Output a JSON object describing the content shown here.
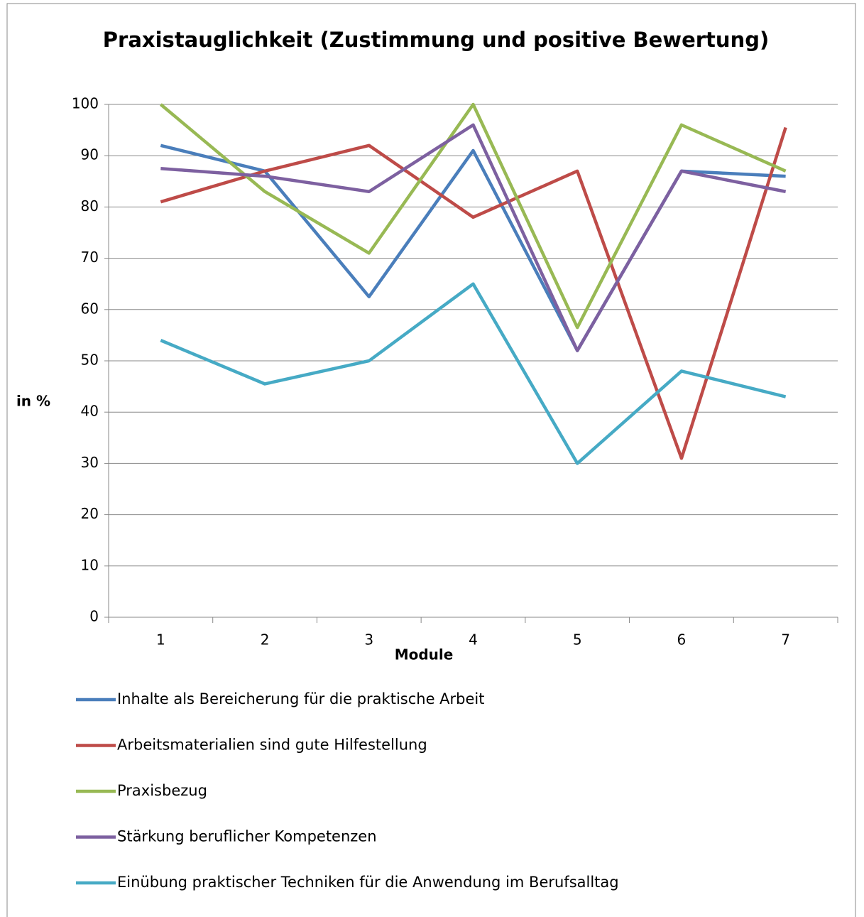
{
  "chart_data": {
    "type": "line",
    "title": "Praxistauglichkeit (Zustimmung und positive Bewertung)",
    "x_label": "Module",
    "y_label": "in %",
    "categories": [
      "1",
      "2",
      "3",
      "4",
      "5",
      "6",
      "7"
    ],
    "series": [
      {
        "name": "Inhalte als Bereicherung für die praktische Arbeit",
        "color": "#4a7ebb",
        "values": [
          92,
          87,
          62.5,
          91,
          52,
          87,
          86
        ]
      },
      {
        "name": "Arbeitsmaterialien sind gute Hilfestellung",
        "color": "#be4b48",
        "values": [
          81,
          87,
          92,
          78,
          87,
          31,
          95.5
        ]
      },
      {
        "name": "Praxisbezug",
        "color": "#98b954",
        "values": [
          100,
          83,
          71,
          100,
          56.5,
          96,
          87
        ]
      },
      {
        "name": "Stärkung beruflicher Kompetenzen",
        "color": "#7d60a0",
        "values": [
          87.5,
          86,
          83,
          96,
          52,
          87,
          83
        ]
      },
      {
        "name": "Einübung praktischer Techniken für die Anwendung im Berufsalltag",
        "color": "#46aac5",
        "values": [
          54,
          45.5,
          50,
          65,
          30,
          48,
          43
        ]
      }
    ],
    "ylim": [
      0,
      100
    ],
    "yticks": [
      0,
      10,
      20,
      30,
      40,
      50,
      60,
      70,
      80,
      90,
      100
    ],
    "grid": true,
    "legend": "bottom"
  }
}
